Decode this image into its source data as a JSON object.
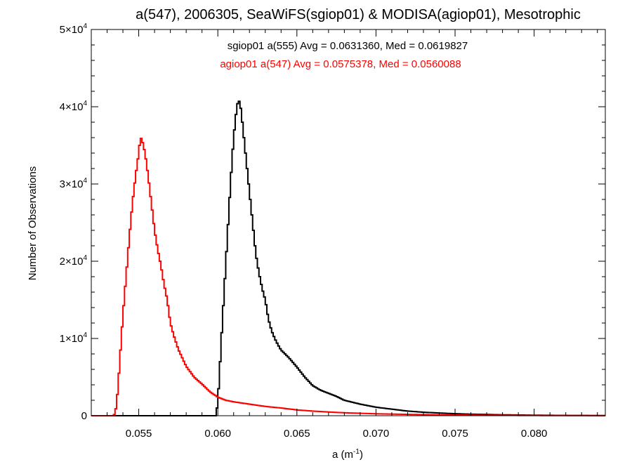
{
  "chart_data": {
    "type": "line",
    "title": "a(547), 2006305, SeaWiFS(sgiop01) & MODISA(agiop01), Mesotrophic",
    "xlabel": {
      "base": "a (m",
      "exp": "-1",
      "close": ")"
    },
    "ylabel": "Number of Observations",
    "xlim": [
      0.052,
      0.0845
    ],
    "ylim": [
      0,
      50000
    ],
    "x_ticks": [
      {
        "value": 0.055,
        "label": "0.055"
      },
      {
        "value": 0.06,
        "label": "0.060"
      },
      {
        "value": 0.065,
        "label": "0.065"
      },
      {
        "value": 0.07,
        "label": "0.070"
      },
      {
        "value": 0.075,
        "label": "0.075"
      },
      {
        "value": 0.08,
        "label": "0.080"
      }
    ],
    "y_ticks": [
      {
        "value": 0,
        "mant": "0",
        "exp": ""
      },
      {
        "value": 10000,
        "mant": "1×10",
        "exp": "4"
      },
      {
        "value": 20000,
        "mant": "2×10",
        "exp": "4"
      },
      {
        "value": 30000,
        "mant": "3×10",
        "exp": "4"
      },
      {
        "value": 40000,
        "mant": "4×10",
        "exp": "4"
      },
      {
        "value": 50000,
        "mant": "5×10",
        "exp": "4"
      }
    ],
    "legend_placement": "top-center",
    "grid": false,
    "series": [
      {
        "label": "sgiop01 a(555) Avg = 0.0631360, Med = 0.0619827",
        "color": "#000000",
        "points": [
          [
            0.052,
            0
          ],
          [
            0.0595,
            0
          ],
          [
            0.0599,
            0
          ],
          [
            0.06,
            2000
          ],
          [
            0.0601,
            5000
          ],
          [
            0.0602,
            9000
          ],
          [
            0.0604,
            16000
          ],
          [
            0.0606,
            23000
          ],
          [
            0.0608,
            30000
          ],
          [
            0.061,
            36000
          ],
          [
            0.0612,
            40000
          ],
          [
            0.0613,
            40800
          ],
          [
            0.0614,
            40600
          ],
          [
            0.0615,
            39000
          ],
          [
            0.0616,
            37000
          ],
          [
            0.0618,
            33000
          ],
          [
            0.062,
            29000
          ],
          [
            0.0622,
            25000
          ],
          [
            0.0624,
            21000
          ],
          [
            0.0626,
            18500
          ],
          [
            0.0628,
            16500
          ],
          [
            0.063,
            15000
          ],
          [
            0.0632,
            12500
          ],
          [
            0.0634,
            11000
          ],
          [
            0.0636,
            10000
          ],
          [
            0.0638,
            9200
          ],
          [
            0.064,
            8500
          ],
          [
            0.0645,
            7500
          ],
          [
            0.065,
            6300
          ],
          [
            0.0655,
            5000
          ],
          [
            0.066,
            3900
          ],
          [
            0.0665,
            3300
          ],
          [
            0.067,
            2900
          ],
          [
            0.0675,
            2500
          ],
          [
            0.068,
            2000
          ],
          [
            0.069,
            1500
          ],
          [
            0.07,
            1100
          ],
          [
            0.071,
            850
          ],
          [
            0.072,
            600
          ],
          [
            0.073,
            450
          ],
          [
            0.074,
            350
          ],
          [
            0.075,
            260
          ],
          [
            0.076,
            200
          ],
          [
            0.078,
            120
          ],
          [
            0.08,
            70
          ],
          [
            0.082,
            40
          ],
          [
            0.0845,
            20
          ]
        ]
      },
      {
        "label": "agiop01 a(547) Avg = 0.0575378, Med = 0.0560088",
        "color": "#ff0000",
        "points": [
          [
            0.052,
            0
          ],
          [
            0.0534,
            0
          ],
          [
            0.0535,
            300
          ],
          [
            0.0536,
            1500
          ],
          [
            0.0537,
            4000
          ],
          [
            0.0538,
            7000
          ],
          [
            0.0539,
            10000
          ],
          [
            0.054,
            13000
          ],
          [
            0.0542,
            18000
          ],
          [
            0.0544,
            23000
          ],
          [
            0.0546,
            27500
          ],
          [
            0.0548,
            31000
          ],
          [
            0.055,
            34000
          ],
          [
            0.0551,
            36000
          ],
          [
            0.0552,
            35800
          ],
          [
            0.0554,
            34000
          ],
          [
            0.0556,
            31000
          ],
          [
            0.0558,
            27500
          ],
          [
            0.056,
            24000
          ],
          [
            0.0562,
            21500
          ],
          [
            0.0564,
            19500
          ],
          [
            0.0566,
            17000
          ],
          [
            0.0568,
            15000
          ],
          [
            0.057,
            12000
          ],
          [
            0.0572,
            10500
          ],
          [
            0.0575,
            8600
          ],
          [
            0.058,
            6400
          ],
          [
            0.0585,
            5000
          ],
          [
            0.059,
            4100
          ],
          [
            0.0595,
            3100
          ],
          [
            0.06,
            2400
          ],
          [
            0.0605,
            2000
          ],
          [
            0.061,
            1800
          ],
          [
            0.062,
            1500
          ],
          [
            0.063,
            1200
          ],
          [
            0.064,
            1000
          ],
          [
            0.065,
            750
          ],
          [
            0.066,
            600
          ],
          [
            0.067,
            480
          ],
          [
            0.068,
            380
          ],
          [
            0.07,
            250
          ],
          [
            0.072,
            170
          ],
          [
            0.074,
            110
          ],
          [
            0.076,
            80
          ],
          [
            0.078,
            50
          ],
          [
            0.08,
            30
          ],
          [
            0.0845,
            15
          ]
        ]
      }
    ]
  }
}
